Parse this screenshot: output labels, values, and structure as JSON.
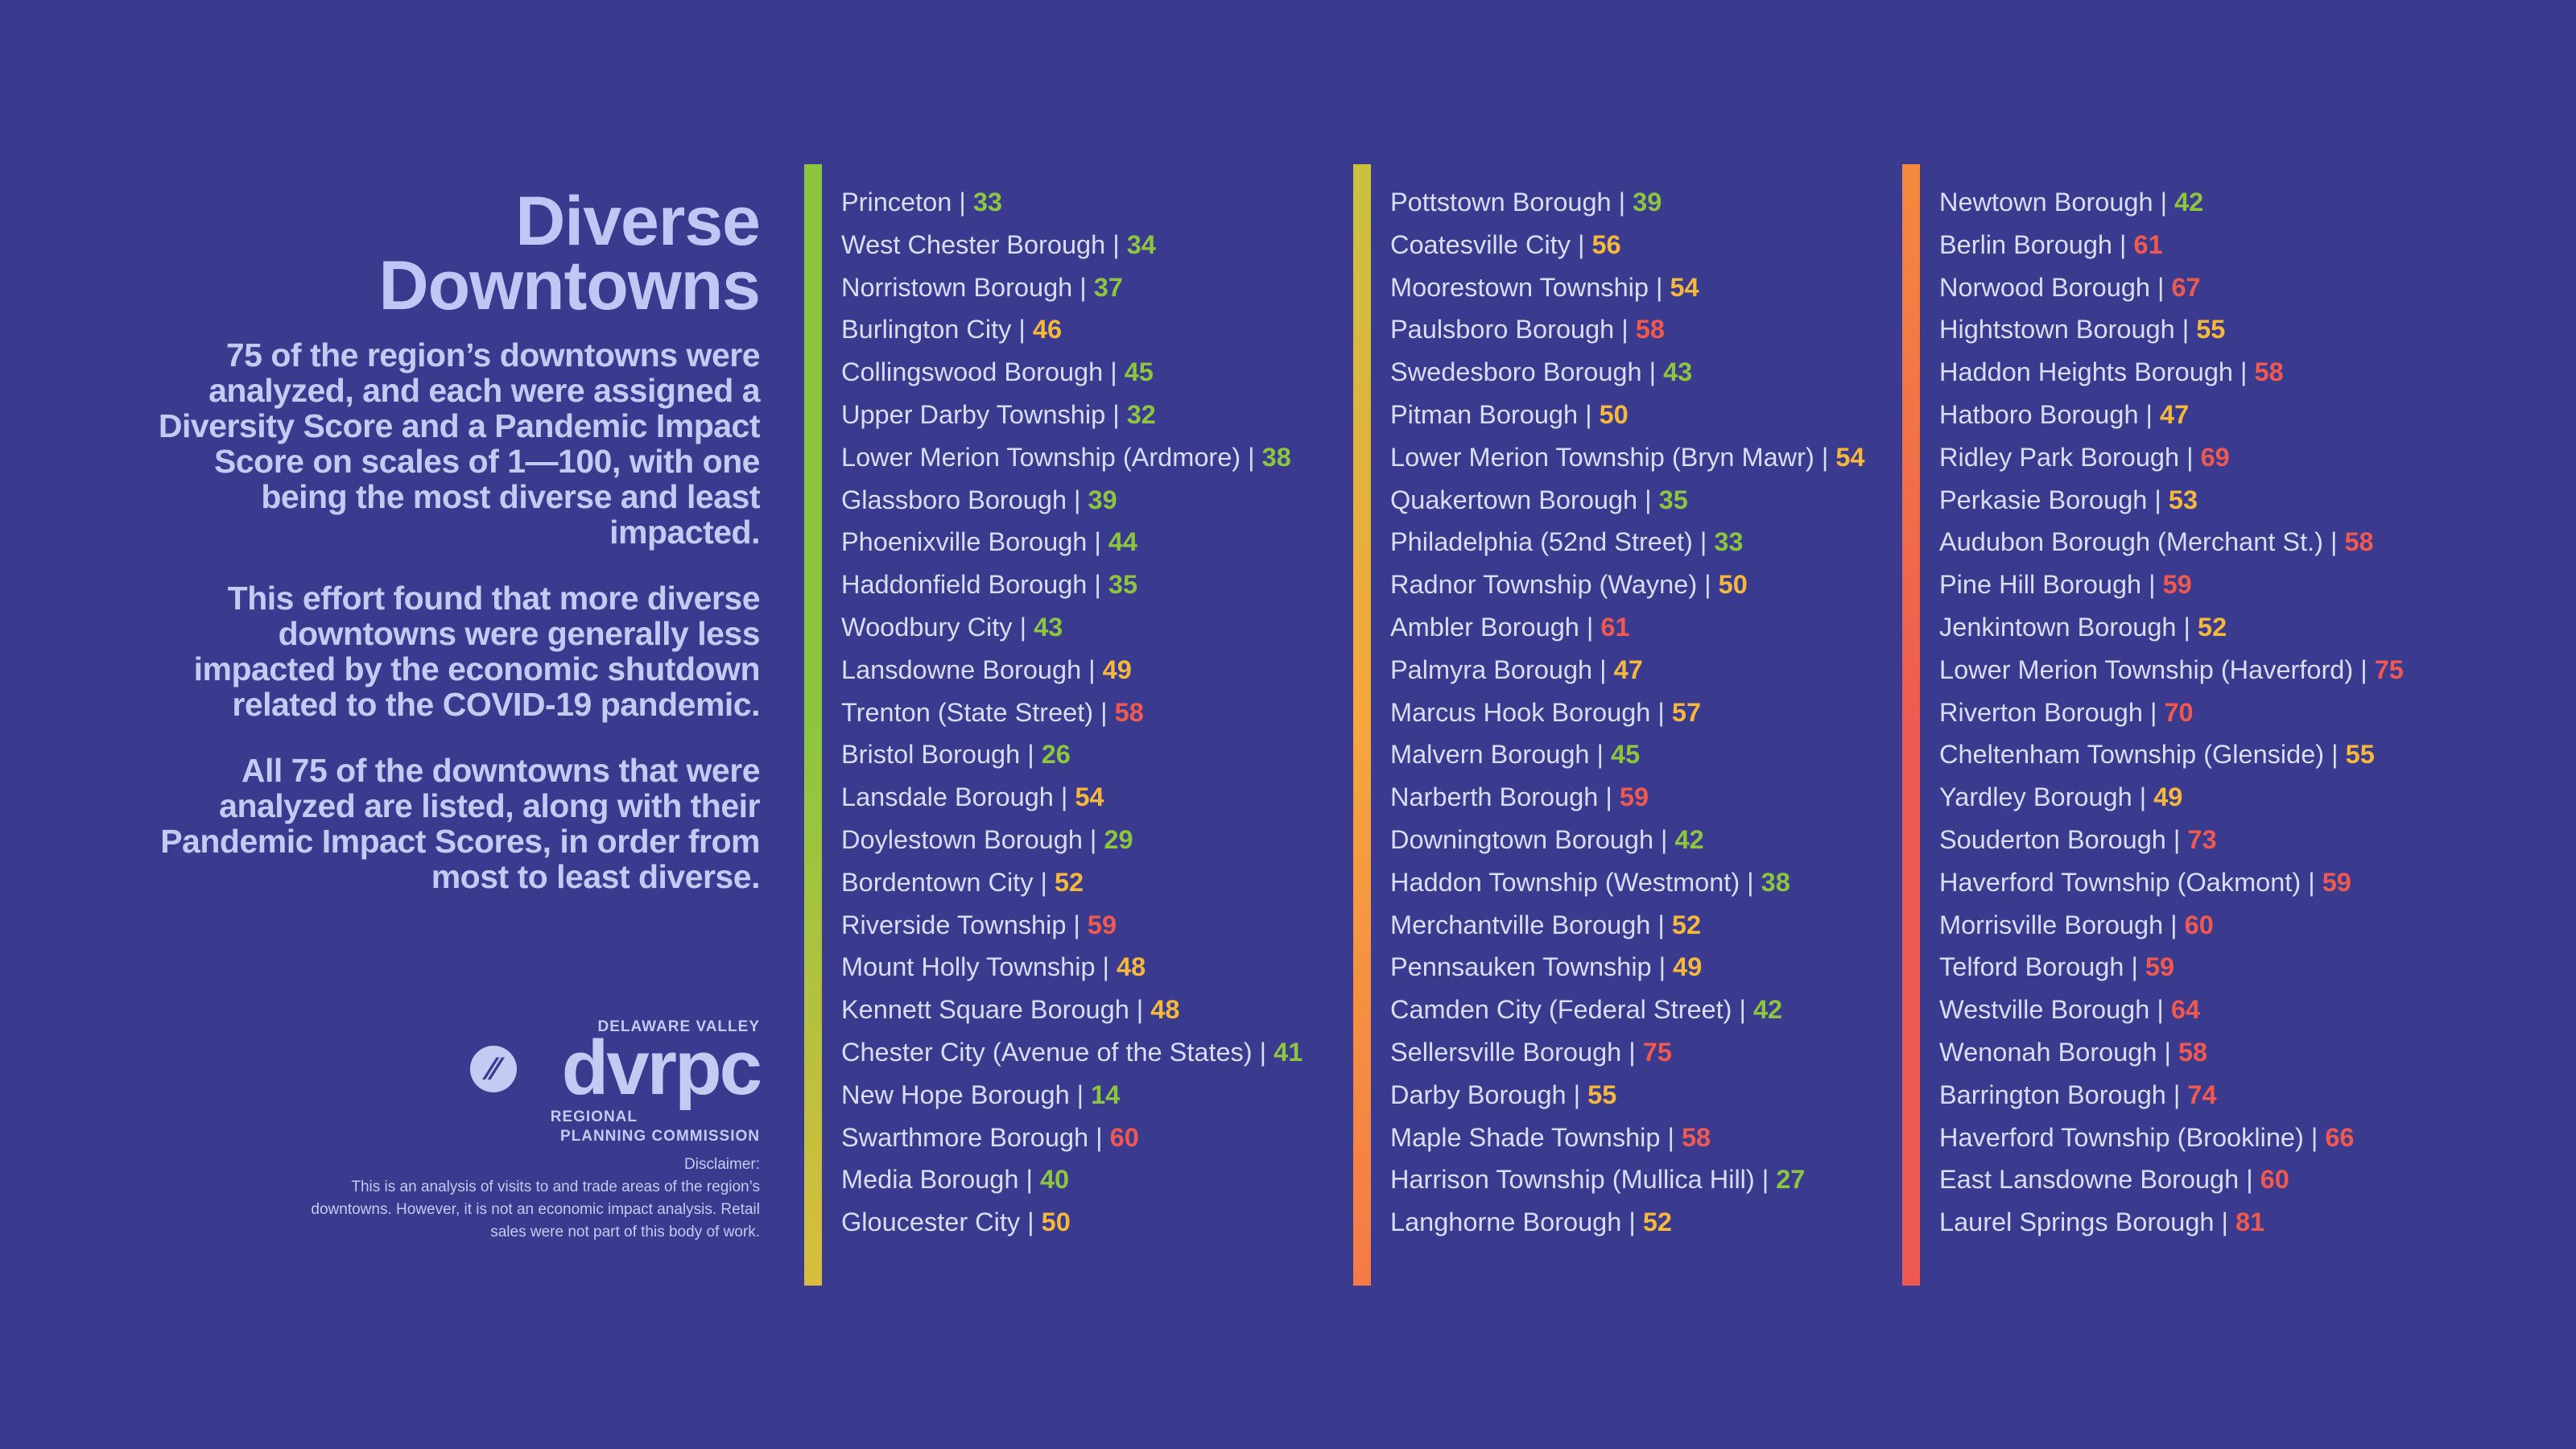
{
  "title_line1": "Diverse",
  "title_line2": "Downtowns",
  "paragraphs": [
    "75 of the region’s downtowns were analyzed, and each were assigned a Diversity Score and a Pandemic Impact Score on scales of 1—100, with one being the most diverse and least impacted.",
    "This effort found that more diverse downtowns were generally less impacted by the economic shutdown related to the COVID-19 pandemic.",
    "All 75 of the downtowns that were analyzed are listed, along with their Pandemic Impact Scores, in order from most to least diverse."
  ],
  "logo": {
    "top": "DELAWARE VALLEY",
    "main": "dvrpc",
    "sub1": "REGIONAL",
    "sub2": "PLANNING COMMISSION"
  },
  "disclaimer": {
    "label": "Disclaimer:",
    "text": "This is an analysis of visits to and trade areas of the region’s downtowns. However,  it is not an economic impact analysis. Retail sales were not part of this body of work."
  },
  "colors": {
    "background": "#3a3a8f",
    "green": "#8cc63f",
    "yellow": "#f5b83d",
    "red": "#ef5a50",
    "text": "#d9ddf7"
  },
  "columns": [
    {
      "bar_gradient": [
        "#8cc63f",
        "#8cc63f",
        "#d9bd3e"
      ],
      "items": [
        {
          "name": "Princeton",
          "score": "33"
        },
        {
          "name": "West Chester Borough",
          "score": "34"
        },
        {
          "name": "Norristown Borough",
          "score": "37"
        },
        {
          "name": "Burlington City",
          "score": "46"
        },
        {
          "name": "Collingswood Borough",
          "score": "45"
        },
        {
          "name": "Upper Darby Township",
          "score": "32"
        },
        {
          "name": "Lower Merion Township (Ardmore)",
          "score": "38"
        },
        {
          "name": "Glassboro Borough",
          "score": "39"
        },
        {
          "name": "Phoenixville Borough",
          "score": "44"
        },
        {
          "name": "Haddonfield Borough",
          "score": "35"
        },
        {
          "name": "Woodbury City",
          "score": "43"
        },
        {
          "name": "Lansdowne Borough",
          "score": "49"
        },
        {
          "name": "Trenton (State Street)",
          "score": "58"
        },
        {
          "name": "Bristol Borough",
          "score": "26"
        },
        {
          "name": "Lansdale Borough",
          "score": "54"
        },
        {
          "name": "Doylestown Borough",
          "score": "29"
        },
        {
          "name": "Bordentown City",
          "score": "52"
        },
        {
          "name": "Riverside Township",
          "score": "59"
        },
        {
          "name": "Mount Holly Township",
          "score": "48"
        },
        {
          "name": "Kennett Square Borough",
          "score": "48"
        },
        {
          "name": "Chester City (Avenue of the States)",
          "score": "41"
        },
        {
          "name": "New Hope Borough",
          "score": "14"
        },
        {
          "name": "Swarthmore Borough",
          "score": "60"
        },
        {
          "name": "Media Borough",
          "score": "40"
        },
        {
          "name": "Gloucester City",
          "score": "50"
        }
      ]
    },
    {
      "bar_gradient": [
        "#c9c13e",
        "#f5a63d",
        "#f57a45"
      ],
      "items": [
        {
          "name": "Pottstown Borough",
          "score": "39"
        },
        {
          "name": "Coatesville City",
          "score": "56"
        },
        {
          "name": "Moorestown Township",
          "score": "54"
        },
        {
          "name": "Paulsboro Borough",
          "score": "58"
        },
        {
          "name": "Swedesboro Borough",
          "score": "43"
        },
        {
          "name": "Pitman Borough",
          "score": "50"
        },
        {
          "name": "Lower Merion Township (Bryn Mawr)",
          "score": "54"
        },
        {
          "name": "Quakertown Borough",
          "score": "35"
        },
        {
          "name": "Philadelphia (52nd Street)",
          "score": "33"
        },
        {
          "name": "Radnor Township (Wayne)",
          "score": "50"
        },
        {
          "name": "Ambler Borough",
          "score": "61"
        },
        {
          "name": "Palmyra Borough",
          "score": "47"
        },
        {
          "name": "Marcus Hook Borough",
          "score": "57"
        },
        {
          "name": "Malvern Borough",
          "score": "45"
        },
        {
          "name": "Narberth Borough",
          "score": "59"
        },
        {
          "name": "Downingtown Borough",
          "score": "42"
        },
        {
          "name": "Haddon Township (Westmont)",
          "score": "38"
        },
        {
          "name": "Merchantville Borough",
          "score": "52"
        },
        {
          "name": "Pennsauken Township",
          "score": "49"
        },
        {
          "name": "Camden City (Federal Street)",
          "score": "42"
        },
        {
          "name": "Sellersville Borough",
          "score": "75"
        },
        {
          "name": "Darby Borough",
          "score": "55"
        },
        {
          "name": "Maple Shade Township",
          "score": "58"
        },
        {
          "name": "Harrison Township (Mullica Hill)",
          "score": "27"
        },
        {
          "name": "Langhorne Borough",
          "score": "52"
        }
      ]
    },
    {
      "bar_gradient": [
        "#f5893d",
        "#ef5a50",
        "#ef5a50"
      ],
      "items": [
        {
          "name": "Newtown Borough",
          "score": "42"
        },
        {
          "name": "Berlin Borough",
          "score": "61"
        },
        {
          "name": "Norwood Borough",
          "score": "67"
        },
        {
          "name": "Hightstown Borough",
          "score": "55"
        },
        {
          "name": "Haddon Heights Borough",
          "score": "58"
        },
        {
          "name": "Hatboro Borough",
          "score": "47"
        },
        {
          "name": "Ridley Park Borough",
          "score": "69"
        },
        {
          "name": "Perkasie Borough",
          "score": "53"
        },
        {
          "name": "Audubon Borough (Merchant St.)",
          "score": "58"
        },
        {
          "name": "Pine Hill Borough",
          "score": "59"
        },
        {
          "name": "Jenkintown Borough",
          "score": "52"
        },
        {
          "name": "Lower Merion Township (Haverford)",
          "score": "75"
        },
        {
          "name": "Riverton Borough",
          "score": "70"
        },
        {
          "name": "Cheltenham Township (Glenside)",
          "score": "55"
        },
        {
          "name": "Yardley Borough",
          "score": "49"
        },
        {
          "name": "Souderton Borough",
          "score": "73"
        },
        {
          "name": "Haverford Township (Oakmont)",
          "score": "59"
        },
        {
          "name": "Morrisville Borough",
          "score": "60"
        },
        {
          "name": "Telford Borough",
          "score": "59"
        },
        {
          "name": "Westville Borough",
          "score": "64"
        },
        {
          "name": "Wenonah Borough",
          "score": "58"
        },
        {
          "name": "Barrington Borough",
          "score": "74"
        },
        {
          "name": "Haverford Township (Brookline)",
          "score": "66"
        },
        {
          "name": "East Lansdowne Borough",
          "score": "60"
        },
        {
          "name": "Laurel Springs Borough",
          "score": "81"
        }
      ]
    }
  ]
}
